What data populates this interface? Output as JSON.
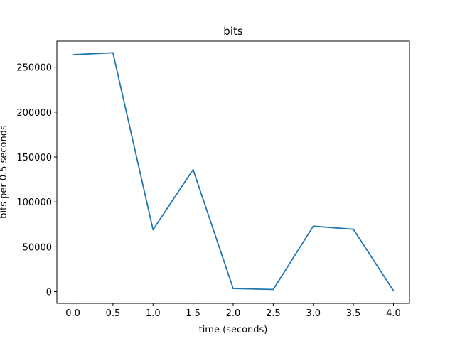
{
  "chart_data": {
    "type": "line",
    "title": "bits",
    "xlabel": "time (seconds)",
    "ylabel": "bits per 0.5 seconds",
    "x": [
      0.0,
      0.5,
      1.0,
      1.5,
      2.0,
      2.5,
      3.0,
      3.5,
      4.0
    ],
    "series": [
      {
        "values": [
          264000,
          266000,
          69000,
          136000,
          3500,
          2500,
          73000,
          69500,
          1000
        ]
      }
    ],
    "xlim": [
      -0.2,
      4.2
    ],
    "ylim": [
      -13000,
      279000
    ],
    "xticks": [
      0.0,
      0.5,
      1.0,
      1.5,
      2.0,
      2.5,
      3.0,
      3.5,
      4.0
    ],
    "xtick_labels": [
      "0.0",
      "0.5",
      "1.0",
      "1.5",
      "2.0",
      "2.5",
      "3.0",
      "3.5",
      "4.0"
    ],
    "yticks": [
      0,
      50000,
      100000,
      150000,
      200000,
      250000
    ],
    "ytick_labels": [
      "0",
      "50000",
      "100000",
      "150000",
      "200000",
      "250000"
    ],
    "grid": false,
    "colors": {
      "line": "#1f77b4",
      "axes": "#000000",
      "background": "#ffffff"
    }
  }
}
